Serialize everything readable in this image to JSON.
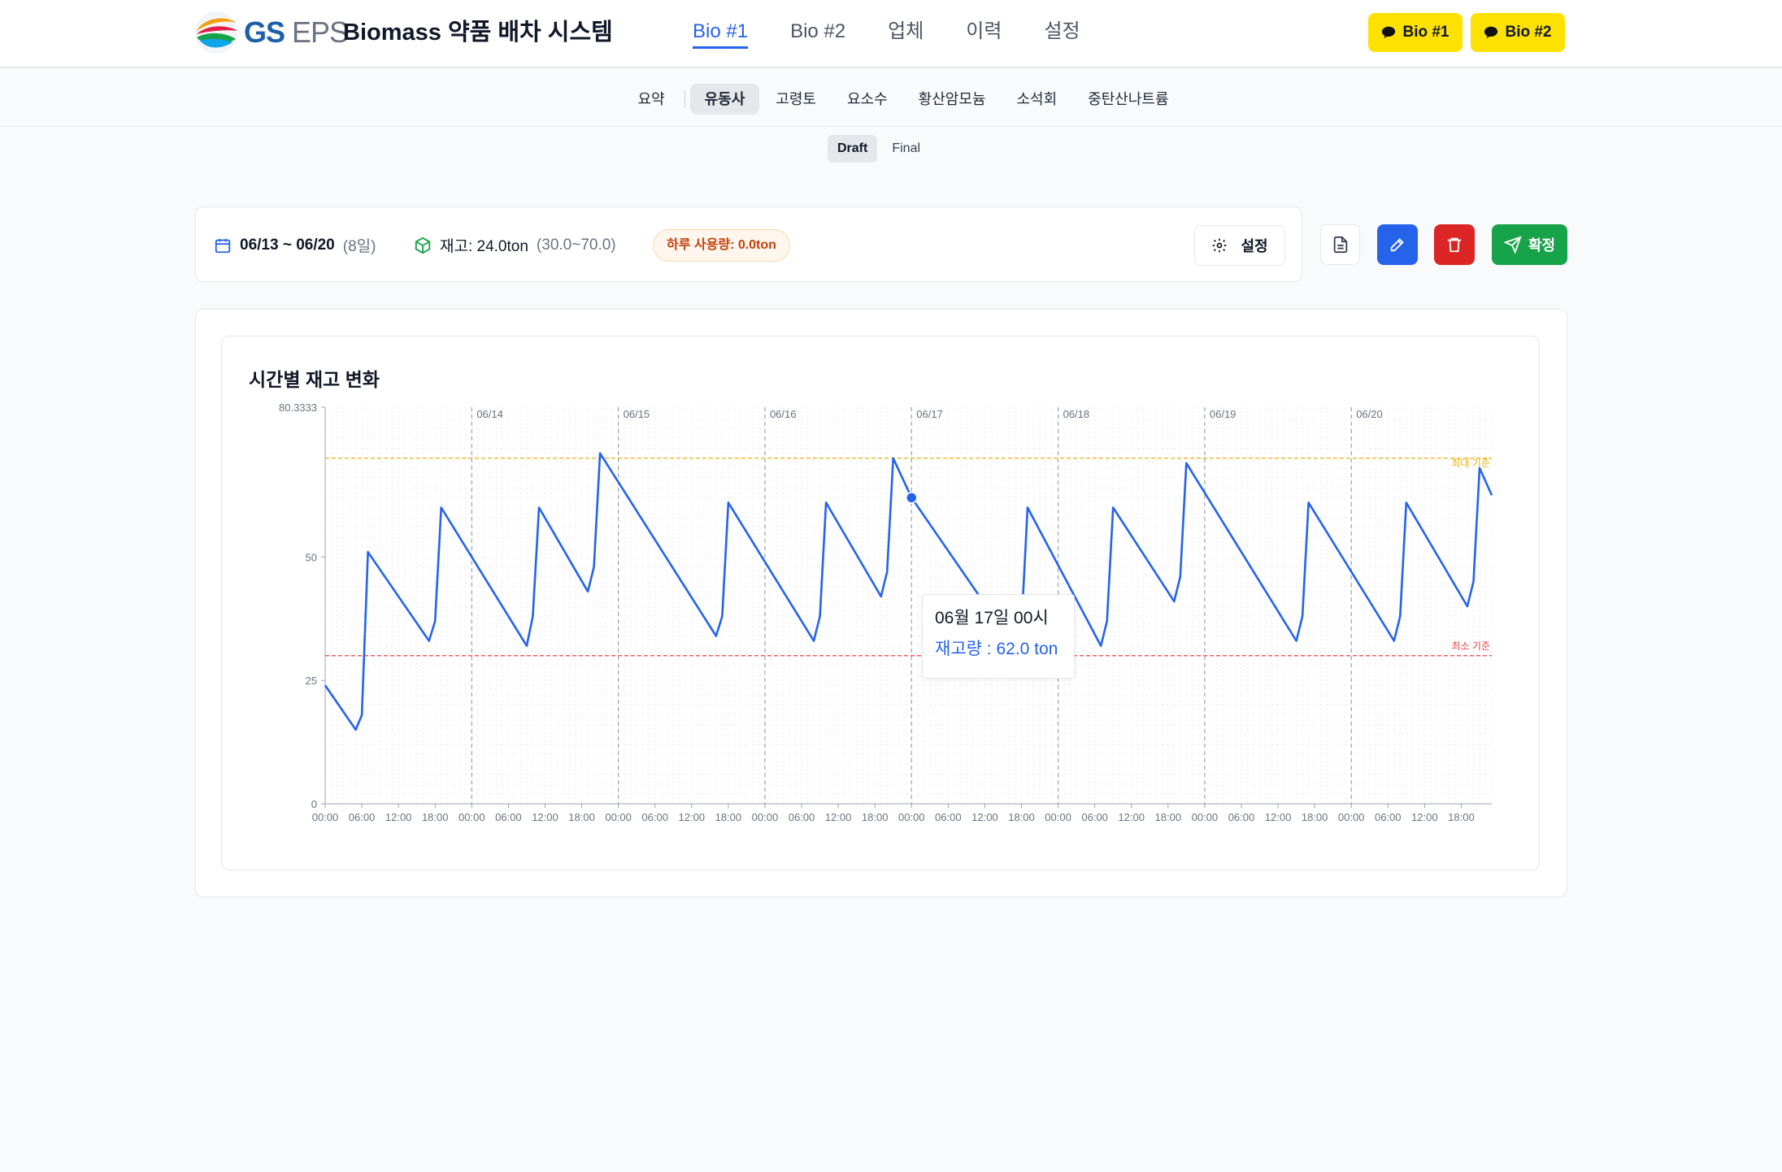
{
  "header": {
    "brand_gs": "GS",
    "brand_eps": "EPS",
    "title": "Biomass 약품 배차 시스템",
    "tabs": [
      {
        "label": "Bio #1",
        "active": true
      },
      {
        "label": "Bio #2",
        "active": false
      },
      {
        "label": "업체",
        "active": false
      },
      {
        "label": "이력",
        "active": false
      },
      {
        "label": "설정",
        "active": false
      }
    ],
    "kakao_buttons": [
      "Bio #1",
      "Bio #2"
    ],
    "kakao_color": "#fde100"
  },
  "subnav": {
    "items": [
      "요약",
      "유동사",
      "고령토",
      "요소수",
      "황산암모늄",
      "소석회",
      "중탄산나트륨"
    ],
    "active": "유동사"
  },
  "mode": {
    "items": [
      "Draft",
      "Final"
    ],
    "active": "Draft"
  },
  "info": {
    "date_range": "06/13 ~ 06/20",
    "days": "(8일)",
    "stock": "재고: 24.0ton",
    "stock_range": "(30.0~70.0)",
    "daily_usage": "하루 사용량: 0.0ton",
    "settings_label": "설정"
  },
  "actions": {
    "colors": {
      "doc": "#ffffff",
      "edit": "#2563eb",
      "delete": "#dc2626",
      "confirm": "#16a34a"
    },
    "confirm_label": "확정"
  },
  "chart": {
    "title": "시간별 재고 변화",
    "tooltip_title": "06월 17일 00시",
    "tooltip_value": "재고량 : 62.0 ton"
  },
  "chart_data": {
    "type": "line",
    "title": "시간별 재고 변화",
    "xlabel": "",
    "ylabel": "",
    "ylim": [
      0,
      80.3333
    ],
    "yticks": [
      "0",
      "25",
      "50",
      "80.3333"
    ],
    "day_labels": [
      "06/14",
      "06/15",
      "06/16",
      "06/17",
      "06/18",
      "06/19",
      "06/20"
    ],
    "hour_labels": [
      "00:00",
      "06:00",
      "12:00",
      "18:00"
    ],
    "x_range_hours": [
      0,
      191
    ],
    "reference_lines": [
      {
        "name": "최대 기준",
        "value": 70,
        "color": "#eab308"
      },
      {
        "name": "최소 기준",
        "value": 30,
        "color": "#ef4444"
      }
    ],
    "series": [
      {
        "name": "재고량",
        "color": "#2563eb",
        "points": [
          [
            0,
            24
          ],
          [
            5,
            15
          ],
          [
            6,
            18
          ],
          [
            7,
            51
          ],
          [
            17,
            33
          ],
          [
            18,
            37
          ],
          [
            19,
            60
          ],
          [
            33,
            32
          ],
          [
            34,
            38
          ],
          [
            35,
            60
          ],
          [
            43,
            43
          ],
          [
            44,
            48
          ],
          [
            45,
            71
          ],
          [
            64,
            34
          ],
          [
            65,
            38
          ],
          [
            66,
            61
          ],
          [
            80,
            33
          ],
          [
            81,
            38
          ],
          [
            82,
            61
          ],
          [
            91,
            42
          ],
          [
            92,
            47
          ],
          [
            93,
            70
          ],
          [
            96,
            62
          ],
          [
            113,
            31.5
          ],
          [
            114,
            36
          ],
          [
            115,
            60
          ],
          [
            127,
            32
          ],
          [
            128,
            37
          ],
          [
            129,
            60
          ],
          [
            139,
            41
          ],
          [
            140,
            46
          ],
          [
            141,
            69
          ],
          [
            159,
            33
          ],
          [
            160,
            38
          ],
          [
            161,
            61
          ],
          [
            175,
            33
          ],
          [
            176,
            38
          ],
          [
            177,
            61
          ],
          [
            187,
            40
          ],
          [
            188,
            45
          ],
          [
            189,
            68
          ],
          [
            191,
            62.5
          ]
        ]
      }
    ],
    "highlight": {
      "x": 96,
      "y": 62,
      "label": "06월 17일 00시"
    }
  }
}
